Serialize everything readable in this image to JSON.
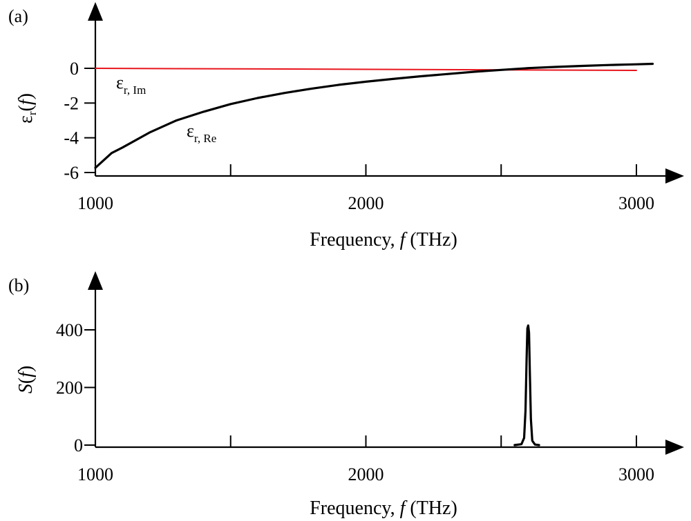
{
  "chart_data": [
    {
      "panel": "(a)",
      "type": "line",
      "xlabel": "Frequency, f (THz)",
      "xlabel_parts": {
        "pre": "Frequency, ",
        "var": "f",
        "post": " (THz)"
      },
      "ylabel": "εr(f)",
      "ylabel_parts": {
        "sym": "ε",
        "sub": "r",
        "open": "(",
        "var": "f",
        "close": ")"
      },
      "xlim": [
        1000,
        3050
      ],
      "ylim": [
        -6.1,
        0.3
      ],
      "xticks": [
        1000,
        1500,
        2000,
        2500,
        3000
      ],
      "xtick_labels": [
        "1000",
        "2000",
        "3000"
      ],
      "xtick_label_values": [
        1000,
        2000,
        3000
      ],
      "yticks": [
        0,
        -2,
        -4,
        -6
      ],
      "ytick_labels": [
        "0",
        "-2",
        "-4",
        "-6"
      ],
      "grid": false,
      "series": [
        {
          "name": "εr, Im",
          "label_parts": {
            "sym": "ε",
            "sub": "r, Im"
          },
          "color": "#e8141c",
          "x": [
            1000,
            3000
          ],
          "y": [
            0.0,
            -0.12
          ]
        },
        {
          "name": "εr, Re",
          "label_parts": {
            "sym": "ε",
            "sub": "r, Re"
          },
          "color": "#000000",
          "x": [
            1000,
            1060,
            1100,
            1200,
            1300,
            1400,
            1500,
            1600,
            1700,
            1800,
            1900,
            2000,
            2100,
            2200,
            2300,
            2400,
            2500,
            2600,
            2700,
            2800,
            2900,
            3000,
            3060
          ],
          "y": [
            -5.73,
            -4.88,
            -4.56,
            -3.7,
            -3.0,
            -2.5,
            -2.06,
            -1.71,
            -1.42,
            -1.17,
            -0.95,
            -0.77,
            -0.61,
            -0.46,
            -0.33,
            -0.2,
            -0.09,
            0.01,
            0.08,
            0.14,
            0.19,
            0.23,
            0.26
          ]
        }
      ]
    },
    {
      "panel": "(b)",
      "type": "line",
      "xlabel": "Frequency, f (THz)",
      "xlabel_parts": {
        "pre": "Frequency, ",
        "var": "f",
        "post": " (THz)"
      },
      "ylabel": "S(f)",
      "ylabel_parts": {
        "sym": "S",
        "open": "(",
        "var": "f",
        "close": ")"
      },
      "xlim": [
        1000,
        3050
      ],
      "ylim": [
        0,
        520
      ],
      "xticks": [
        1000,
        1500,
        2000,
        2500,
        3000
      ],
      "xtick_labels": [
        "1000",
        "2000",
        "3000"
      ],
      "xtick_label_values": [
        1000,
        2000,
        3000
      ],
      "yticks": [
        0,
        200,
        400
      ],
      "ytick_labels": [
        "0",
        "200",
        "400"
      ],
      "grid": false,
      "series": [
        {
          "color": "#000000",
          "x": [
            2550,
            2575,
            2585,
            2590,
            2594,
            2597,
            2600,
            2603,
            2606,
            2610,
            2615,
            2625,
            2640
          ],
          "y": [
            0,
            3,
            25,
            120,
            300,
            405,
            415,
            390,
            260,
            90,
            15,
            2,
            0
          ]
        }
      ]
    }
  ]
}
